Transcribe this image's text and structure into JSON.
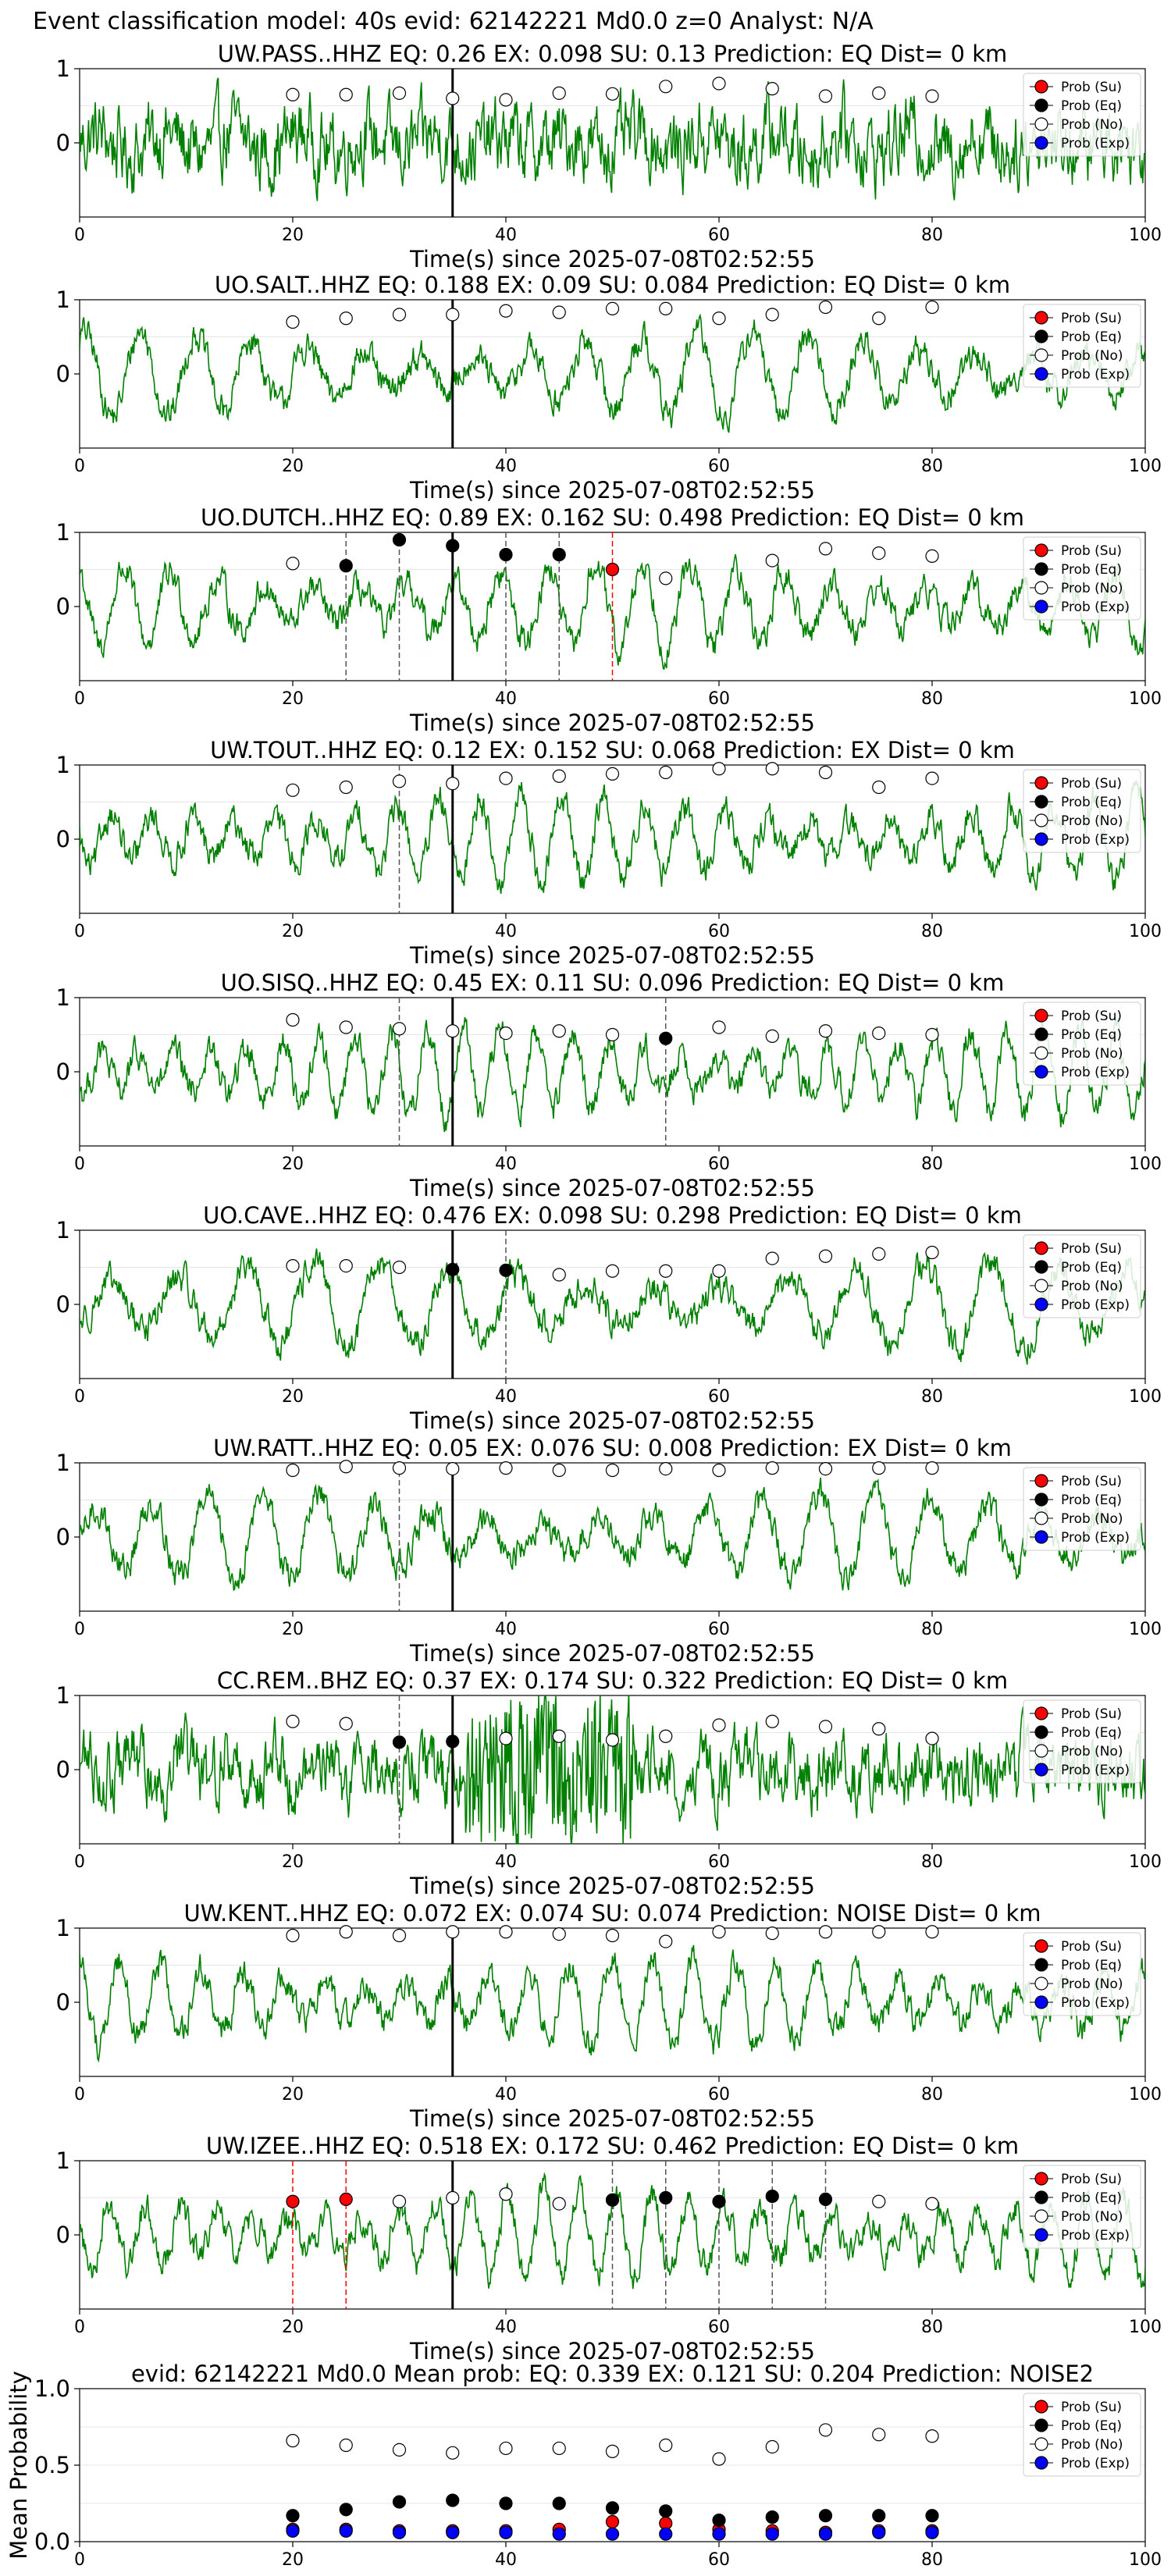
{
  "figure_title": "Event classification model: 40s evid: 62142221 Md0.0 z=0 Analyst: N/A",
  "colors": {
    "waveform": "#008000",
    "su": "#ff0000",
    "eq": "#000000",
    "no": "#ffffff",
    "exp": "#0000ff",
    "origin_line": "#000000",
    "pick_eq": "#555555",
    "pick_su": "#ff0000"
  },
  "legend_labels": [
    "Prob (Su)",
    "Prob (Eq)",
    "Prob (No)",
    "Prob (Exp)"
  ],
  "chart_data": [
    {
      "type": "line",
      "title": "UW.PASS..HHZ   EQ: 0.26  EX: 0.098  SU: 0.13   Prediction: EQ    Dist= 0 km",
      "xlabel": "Time(s) since 2025-07-08T02:52:55",
      "xlim": [
        0,
        100
      ],
      "ylim": [
        -1,
        1
      ],
      "xticks": [
        0,
        20,
        40,
        60,
        80,
        100
      ],
      "yticks": [
        0,
        1
      ],
      "grid": "y",
      "legend": "right",
      "origin_time": 35,
      "picks": [],
      "points": [
        {
          "x": 20,
          "cls": "no",
          "y": 0.65
        },
        {
          "x": 25,
          "cls": "no",
          "y": 0.65
        },
        {
          "x": 30,
          "cls": "no",
          "y": 0.67
        },
        {
          "x": 35,
          "cls": "no",
          "y": 0.6
        },
        {
          "x": 40,
          "cls": "no",
          "y": 0.58
        },
        {
          "x": 45,
          "cls": "no",
          "y": 0.67
        },
        {
          "x": 50,
          "cls": "no",
          "y": 0.66
        },
        {
          "x": 55,
          "cls": "no",
          "y": 0.76
        },
        {
          "x": 60,
          "cls": "no",
          "y": 0.8
        },
        {
          "x": 65,
          "cls": "no",
          "y": 0.73
        },
        {
          "x": 70,
          "cls": "no",
          "y": 0.63
        },
        {
          "x": 75,
          "cls": "no",
          "y": 0.67
        },
        {
          "x": 80,
          "cls": "no",
          "y": 0.63
        }
      ]
    },
    {
      "type": "line",
      "title": "UO.SALT..HHZ   EQ: 0.188  EX: 0.09  SU: 0.084   Prediction: EQ    Dist= 0 km",
      "xlabel": "Time(s) since 2025-07-08T02:52:55",
      "xlim": [
        0,
        100
      ],
      "ylim": [
        -1,
        1
      ],
      "xticks": [
        0,
        20,
        40,
        60,
        80,
        100
      ],
      "yticks": [
        0,
        1
      ],
      "grid": "y",
      "legend": "right",
      "origin_time": 35,
      "picks": [],
      "points": [
        {
          "x": 20,
          "cls": "no",
          "y": 0.7
        },
        {
          "x": 25,
          "cls": "no",
          "y": 0.75
        },
        {
          "x": 30,
          "cls": "no",
          "y": 0.8
        },
        {
          "x": 35,
          "cls": "no",
          "y": 0.8
        },
        {
          "x": 40,
          "cls": "no",
          "y": 0.85
        },
        {
          "x": 45,
          "cls": "no",
          "y": 0.83
        },
        {
          "x": 50,
          "cls": "no",
          "y": 0.88
        },
        {
          "x": 55,
          "cls": "no",
          "y": 0.88
        },
        {
          "x": 60,
          "cls": "no",
          "y": 0.75
        },
        {
          "x": 65,
          "cls": "no",
          "y": 0.8
        },
        {
          "x": 70,
          "cls": "no",
          "y": 0.9
        },
        {
          "x": 75,
          "cls": "no",
          "y": 0.75
        },
        {
          "x": 80,
          "cls": "no",
          "y": 0.9
        }
      ]
    },
    {
      "type": "line",
      "title": "UO.DUTCH..HHZ   EQ: 0.89  EX: 0.162  SU: 0.498   Prediction: EQ    Dist= 0 km",
      "xlabel": "Time(s) since 2025-07-08T02:52:55",
      "xlim": [
        0,
        100
      ],
      "ylim": [
        -1,
        1
      ],
      "xticks": [
        0,
        20,
        40,
        60,
        80,
        100
      ],
      "yticks": [
        0,
        1
      ],
      "grid": "y",
      "legend": "right",
      "origin_time": 35,
      "picks": [
        {
          "x": 25,
          "cls": "eq"
        },
        {
          "x": 30,
          "cls": "eq"
        },
        {
          "x": 40,
          "cls": "eq"
        },
        {
          "x": 45,
          "cls": "eq"
        },
        {
          "x": 50,
          "cls": "su"
        }
      ],
      "points": [
        {
          "x": 20,
          "cls": "no",
          "y": 0.58
        },
        {
          "x": 25,
          "cls": "eq",
          "y": 0.55
        },
        {
          "x": 30,
          "cls": "eq",
          "y": 0.9
        },
        {
          "x": 35,
          "cls": "eq",
          "y": 0.82
        },
        {
          "x": 40,
          "cls": "eq",
          "y": 0.7
        },
        {
          "x": 45,
          "cls": "eq",
          "y": 0.7
        },
        {
          "x": 50,
          "cls": "su",
          "y": 0.5
        },
        {
          "x": 55,
          "cls": "no",
          "y": 0.38
        },
        {
          "x": 65,
          "cls": "no",
          "y": 0.62
        },
        {
          "x": 70,
          "cls": "no",
          "y": 0.78
        },
        {
          "x": 75,
          "cls": "no",
          "y": 0.72
        },
        {
          "x": 80,
          "cls": "no",
          "y": 0.68
        }
      ]
    },
    {
      "type": "line",
      "title": "UW.TOUT..HHZ   EQ: 0.12  EX: 0.152  SU: 0.068   Prediction: EX    Dist= 0 km",
      "xlabel": "Time(s) since 2025-07-08T02:52:55",
      "xlim": [
        0,
        100
      ],
      "ylim": [
        -1,
        1
      ],
      "xticks": [
        0,
        20,
        40,
        60,
        80,
        100
      ],
      "yticks": [
        0,
        1
      ],
      "grid": "y",
      "legend": "right",
      "origin_time": 35,
      "picks": [
        {
          "x": 30,
          "cls": "eq"
        }
      ],
      "points": [
        {
          "x": 20,
          "cls": "no",
          "y": 0.66
        },
        {
          "x": 25,
          "cls": "no",
          "y": 0.7
        },
        {
          "x": 30,
          "cls": "no",
          "y": 0.78
        },
        {
          "x": 35,
          "cls": "no",
          "y": 0.75
        },
        {
          "x": 40,
          "cls": "no",
          "y": 0.82
        },
        {
          "x": 45,
          "cls": "no",
          "y": 0.85
        },
        {
          "x": 50,
          "cls": "no",
          "y": 0.88
        },
        {
          "x": 55,
          "cls": "no",
          "y": 0.9
        },
        {
          "x": 60,
          "cls": "no",
          "y": 0.95
        },
        {
          "x": 65,
          "cls": "no",
          "y": 0.95
        },
        {
          "x": 70,
          "cls": "no",
          "y": 0.9
        },
        {
          "x": 75,
          "cls": "no",
          "y": 0.7
        },
        {
          "x": 80,
          "cls": "no",
          "y": 0.82
        }
      ]
    },
    {
      "type": "line",
      "title": "UO.SISQ..HHZ   EQ: 0.45  EX: 0.11  SU: 0.096   Prediction: EQ    Dist= 0 km",
      "xlabel": "Time(s) since 2025-07-08T02:52:55",
      "xlim": [
        0,
        100
      ],
      "ylim": [
        -1,
        1
      ],
      "xticks": [
        0,
        20,
        40,
        60,
        80,
        100
      ],
      "yticks": [
        0,
        1
      ],
      "grid": "y",
      "legend": "right",
      "origin_time": 35,
      "picks": [
        {
          "x": 30,
          "cls": "eq"
        },
        {
          "x": 55,
          "cls": "eq"
        }
      ],
      "points": [
        {
          "x": 20,
          "cls": "no",
          "y": 0.7
        },
        {
          "x": 25,
          "cls": "no",
          "y": 0.6
        },
        {
          "x": 30,
          "cls": "no",
          "y": 0.58
        },
        {
          "x": 35,
          "cls": "no",
          "y": 0.55
        },
        {
          "x": 40,
          "cls": "no",
          "y": 0.52
        },
        {
          "x": 45,
          "cls": "no",
          "y": 0.55
        },
        {
          "x": 50,
          "cls": "no",
          "y": 0.5
        },
        {
          "x": 55,
          "cls": "eq",
          "y": 0.45
        },
        {
          "x": 60,
          "cls": "no",
          "y": 0.6
        },
        {
          "x": 65,
          "cls": "no",
          "y": 0.48
        },
        {
          "x": 70,
          "cls": "no",
          "y": 0.55
        },
        {
          "x": 75,
          "cls": "no",
          "y": 0.52
        },
        {
          "x": 80,
          "cls": "no",
          "y": 0.5
        }
      ]
    },
    {
      "type": "line",
      "title": "UO.CAVE..HHZ   EQ: 0.476  EX: 0.098  SU: 0.298   Prediction: EQ    Dist= 0 km",
      "xlabel": "Time(s) since 2025-07-08T02:52:55",
      "xlim": [
        0,
        100
      ],
      "ylim": [
        -1,
        1
      ],
      "xticks": [
        0,
        20,
        40,
        60,
        80,
        100
      ],
      "yticks": [
        0,
        1
      ],
      "grid": "y",
      "legend": "right",
      "origin_time": 35,
      "picks": [
        {
          "x": 40,
          "cls": "eq"
        }
      ],
      "points": [
        {
          "x": 20,
          "cls": "no",
          "y": 0.52
        },
        {
          "x": 25,
          "cls": "no",
          "y": 0.52
        },
        {
          "x": 30,
          "cls": "no",
          "y": 0.5
        },
        {
          "x": 35,
          "cls": "eq",
          "y": 0.47
        },
        {
          "x": 40,
          "cls": "eq",
          "y": 0.46
        },
        {
          "x": 45,
          "cls": "no",
          "y": 0.4
        },
        {
          "x": 50,
          "cls": "no",
          "y": 0.45
        },
        {
          "x": 55,
          "cls": "no",
          "y": 0.45
        },
        {
          "x": 60,
          "cls": "no",
          "y": 0.45
        },
        {
          "x": 65,
          "cls": "no",
          "y": 0.62
        },
        {
          "x": 70,
          "cls": "no",
          "y": 0.65
        },
        {
          "x": 75,
          "cls": "no",
          "y": 0.68
        },
        {
          "x": 80,
          "cls": "no",
          "y": 0.7
        }
      ]
    },
    {
      "type": "line",
      "title": "UW.RATT..HHZ   EQ: 0.05  EX: 0.076  SU: 0.008   Prediction: EX    Dist= 0 km",
      "xlabel": "Time(s) since 2025-07-08T02:52:55",
      "xlim": [
        0,
        100
      ],
      "ylim": [
        -1,
        1
      ],
      "xticks": [
        0,
        20,
        40,
        60,
        80,
        100
      ],
      "yticks": [
        0,
        1
      ],
      "grid": "y",
      "legend": "right",
      "origin_time": 35,
      "picks": [
        {
          "x": 30,
          "cls": "eq"
        }
      ],
      "points": [
        {
          "x": 20,
          "cls": "no",
          "y": 0.9
        },
        {
          "x": 25,
          "cls": "no",
          "y": 0.95
        },
        {
          "x": 30,
          "cls": "no",
          "y": 0.93
        },
        {
          "x": 35,
          "cls": "no",
          "y": 0.92
        },
        {
          "x": 40,
          "cls": "no",
          "y": 0.93
        },
        {
          "x": 45,
          "cls": "no",
          "y": 0.9
        },
        {
          "x": 50,
          "cls": "no",
          "y": 0.9
        },
        {
          "x": 55,
          "cls": "no",
          "y": 0.92
        },
        {
          "x": 60,
          "cls": "no",
          "y": 0.9
        },
        {
          "x": 65,
          "cls": "no",
          "y": 0.93
        },
        {
          "x": 70,
          "cls": "no",
          "y": 0.92
        },
        {
          "x": 75,
          "cls": "no",
          "y": 0.93
        },
        {
          "x": 80,
          "cls": "no",
          "y": 0.93
        }
      ]
    },
    {
      "type": "line",
      "title": "CC.REM..BHZ   EQ: 0.37  EX: 0.174  SU: 0.322   Prediction: EQ    Dist= 0 km",
      "xlabel": "Time(s) since 2025-07-08T02:52:55",
      "xlim": [
        0,
        100
      ],
      "ylim": [
        -1,
        1
      ],
      "xticks": [
        0,
        20,
        40,
        60,
        80,
        100
      ],
      "yticks": [
        0,
        1
      ],
      "grid": "y",
      "legend": "right",
      "origin_time": 35,
      "picks": [
        {
          "x": 30,
          "cls": "eq"
        }
      ],
      "points": [
        {
          "x": 20,
          "cls": "no",
          "y": 0.65
        },
        {
          "x": 25,
          "cls": "no",
          "y": 0.62
        },
        {
          "x": 30,
          "cls": "eq",
          "y": 0.37
        },
        {
          "x": 35,
          "cls": "eq",
          "y": 0.38
        },
        {
          "x": 40,
          "cls": "no",
          "y": 0.42
        },
        {
          "x": 45,
          "cls": "no",
          "y": 0.45
        },
        {
          "x": 50,
          "cls": "no",
          "y": 0.4
        },
        {
          "x": 55,
          "cls": "no",
          "y": 0.45
        },
        {
          "x": 60,
          "cls": "no",
          "y": 0.6
        },
        {
          "x": 65,
          "cls": "no",
          "y": 0.65
        },
        {
          "x": 70,
          "cls": "no",
          "y": 0.58
        },
        {
          "x": 75,
          "cls": "no",
          "y": 0.55
        },
        {
          "x": 80,
          "cls": "no",
          "y": 0.42
        }
      ]
    },
    {
      "type": "line",
      "title": "UW.KENT..HHZ   EQ: 0.072  EX: 0.074  SU: 0.074   Prediction: NOISE    Dist= 0 km",
      "xlabel": "Time(s) since 2025-07-08T02:52:55",
      "xlim": [
        0,
        100
      ],
      "ylim": [
        -1,
        1
      ],
      "xticks": [
        0,
        20,
        40,
        60,
        80,
        100
      ],
      "yticks": [
        0,
        1
      ],
      "grid": "y",
      "legend": "right",
      "origin_time": 35,
      "picks": [],
      "points": [
        {
          "x": 20,
          "cls": "no",
          "y": 0.9
        },
        {
          "x": 25,
          "cls": "no",
          "y": 0.95
        },
        {
          "x": 30,
          "cls": "no",
          "y": 0.9
        },
        {
          "x": 35,
          "cls": "no",
          "y": 0.95
        },
        {
          "x": 40,
          "cls": "no",
          "y": 0.95
        },
        {
          "x": 45,
          "cls": "no",
          "y": 0.92
        },
        {
          "x": 50,
          "cls": "no",
          "y": 0.9
        },
        {
          "x": 55,
          "cls": "no",
          "y": 0.82
        },
        {
          "x": 60,
          "cls": "no",
          "y": 0.95
        },
        {
          "x": 65,
          "cls": "no",
          "y": 0.93
        },
        {
          "x": 70,
          "cls": "no",
          "y": 0.95
        },
        {
          "x": 75,
          "cls": "no",
          "y": 0.95
        },
        {
          "x": 80,
          "cls": "no",
          "y": 0.95
        }
      ]
    },
    {
      "type": "line",
      "title": "UW.IZEE..HHZ   EQ: 0.518  EX: 0.172  SU: 0.462   Prediction: EQ    Dist= 0 km",
      "xlabel": "Time(s) since 2025-07-08T02:52:55",
      "xlim": [
        0,
        100
      ],
      "ylim": [
        -1,
        1
      ],
      "xticks": [
        0,
        20,
        40,
        60,
        80,
        100
      ],
      "yticks": [
        0,
        1
      ],
      "grid": "y",
      "legend": "right",
      "origin_time": 35,
      "picks": [
        {
          "x": 20,
          "cls": "su"
        },
        {
          "x": 25,
          "cls": "su"
        },
        {
          "x": 50,
          "cls": "eq"
        },
        {
          "x": 55,
          "cls": "eq"
        },
        {
          "x": 60,
          "cls": "eq"
        },
        {
          "x": 65,
          "cls": "eq"
        },
        {
          "x": 70,
          "cls": "eq"
        }
      ],
      "points": [
        {
          "x": 20,
          "cls": "su",
          "y": 0.45
        },
        {
          "x": 25,
          "cls": "su",
          "y": 0.48
        },
        {
          "x": 30,
          "cls": "no",
          "y": 0.45
        },
        {
          "x": 35,
          "cls": "no",
          "y": 0.5
        },
        {
          "x": 40,
          "cls": "no",
          "y": 0.55
        },
        {
          "x": 45,
          "cls": "no",
          "y": 0.42
        },
        {
          "x": 50,
          "cls": "eq",
          "y": 0.47
        },
        {
          "x": 55,
          "cls": "eq",
          "y": 0.5
        },
        {
          "x": 60,
          "cls": "eq",
          "y": 0.45
        },
        {
          "x": 65,
          "cls": "eq",
          "y": 0.52
        },
        {
          "x": 70,
          "cls": "eq",
          "y": 0.48
        },
        {
          "x": 75,
          "cls": "no",
          "y": 0.45
        },
        {
          "x": 80,
          "cls": "no",
          "y": 0.42
        }
      ]
    },
    {
      "type": "scatter",
      "title": "evid: 62142221   Md0.0   Mean prob:   EQ: 0.339  EX: 0.121  SU: 0.204   Prediction: NOISE2",
      "xlabel": "",
      "ylabel": "Mean Probability",
      "xlim": [
        0,
        100
      ],
      "ylim": [
        0,
        1
      ],
      "xticks": [
        0,
        20,
        40,
        60,
        80,
        100
      ],
      "yticks": [
        0.0,
        0.5,
        1.0
      ],
      "grid": "y",
      "legend": "top-right",
      "x": [
        20,
        25,
        30,
        35,
        40,
        45,
        50,
        55,
        60,
        65,
        70,
        75,
        80
      ],
      "series": [
        {
          "name": "Prob (Su)",
          "cls": "su",
          "values": [
            0.08,
            0.08,
            0.07,
            0.07,
            0.07,
            0.08,
            0.13,
            0.12,
            0.08,
            0.07,
            0.06,
            0.07,
            0.07
          ]
        },
        {
          "name": "Prob (Eq)",
          "cls": "eq",
          "values": [
            0.17,
            0.21,
            0.26,
            0.27,
            0.25,
            0.25,
            0.22,
            0.2,
            0.14,
            0.16,
            0.17,
            0.17,
            0.17
          ]
        },
        {
          "name": "Prob (No)",
          "cls": "no",
          "values": [
            0.66,
            0.63,
            0.6,
            0.58,
            0.61,
            0.61,
            0.59,
            0.63,
            0.54,
            0.62,
            0.73,
            0.7,
            0.69
          ]
        },
        {
          "name": "Prob (Exp)",
          "cls": "exp",
          "values": [
            0.07,
            0.07,
            0.06,
            0.06,
            0.06,
            0.05,
            0.05,
            0.05,
            0.05,
            0.05,
            0.05,
            0.06,
            0.06
          ]
        }
      ]
    }
  ]
}
